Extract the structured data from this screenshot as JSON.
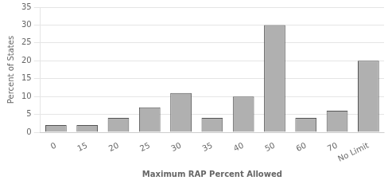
{
  "chart_data": {
    "type": "bar",
    "categories": [
      "0",
      "15",
      "20",
      "25",
      "30",
      "35",
      "40",
      "50",
      "60",
      "70",
      "No Limit"
    ],
    "values": [
      2,
      2,
      4,
      7,
      11,
      4,
      10,
      30,
      4,
      6,
      20
    ],
    "color": "#b0b0b0",
    "xlabel": "Maximum RAP Percent Allowed",
    "ylabel": "Percent of States",
    "ylim": [
      0,
      35
    ],
    "yticks": [
      0,
      5,
      10,
      15,
      20,
      25,
      30,
      35
    ],
    "grid": true
  }
}
